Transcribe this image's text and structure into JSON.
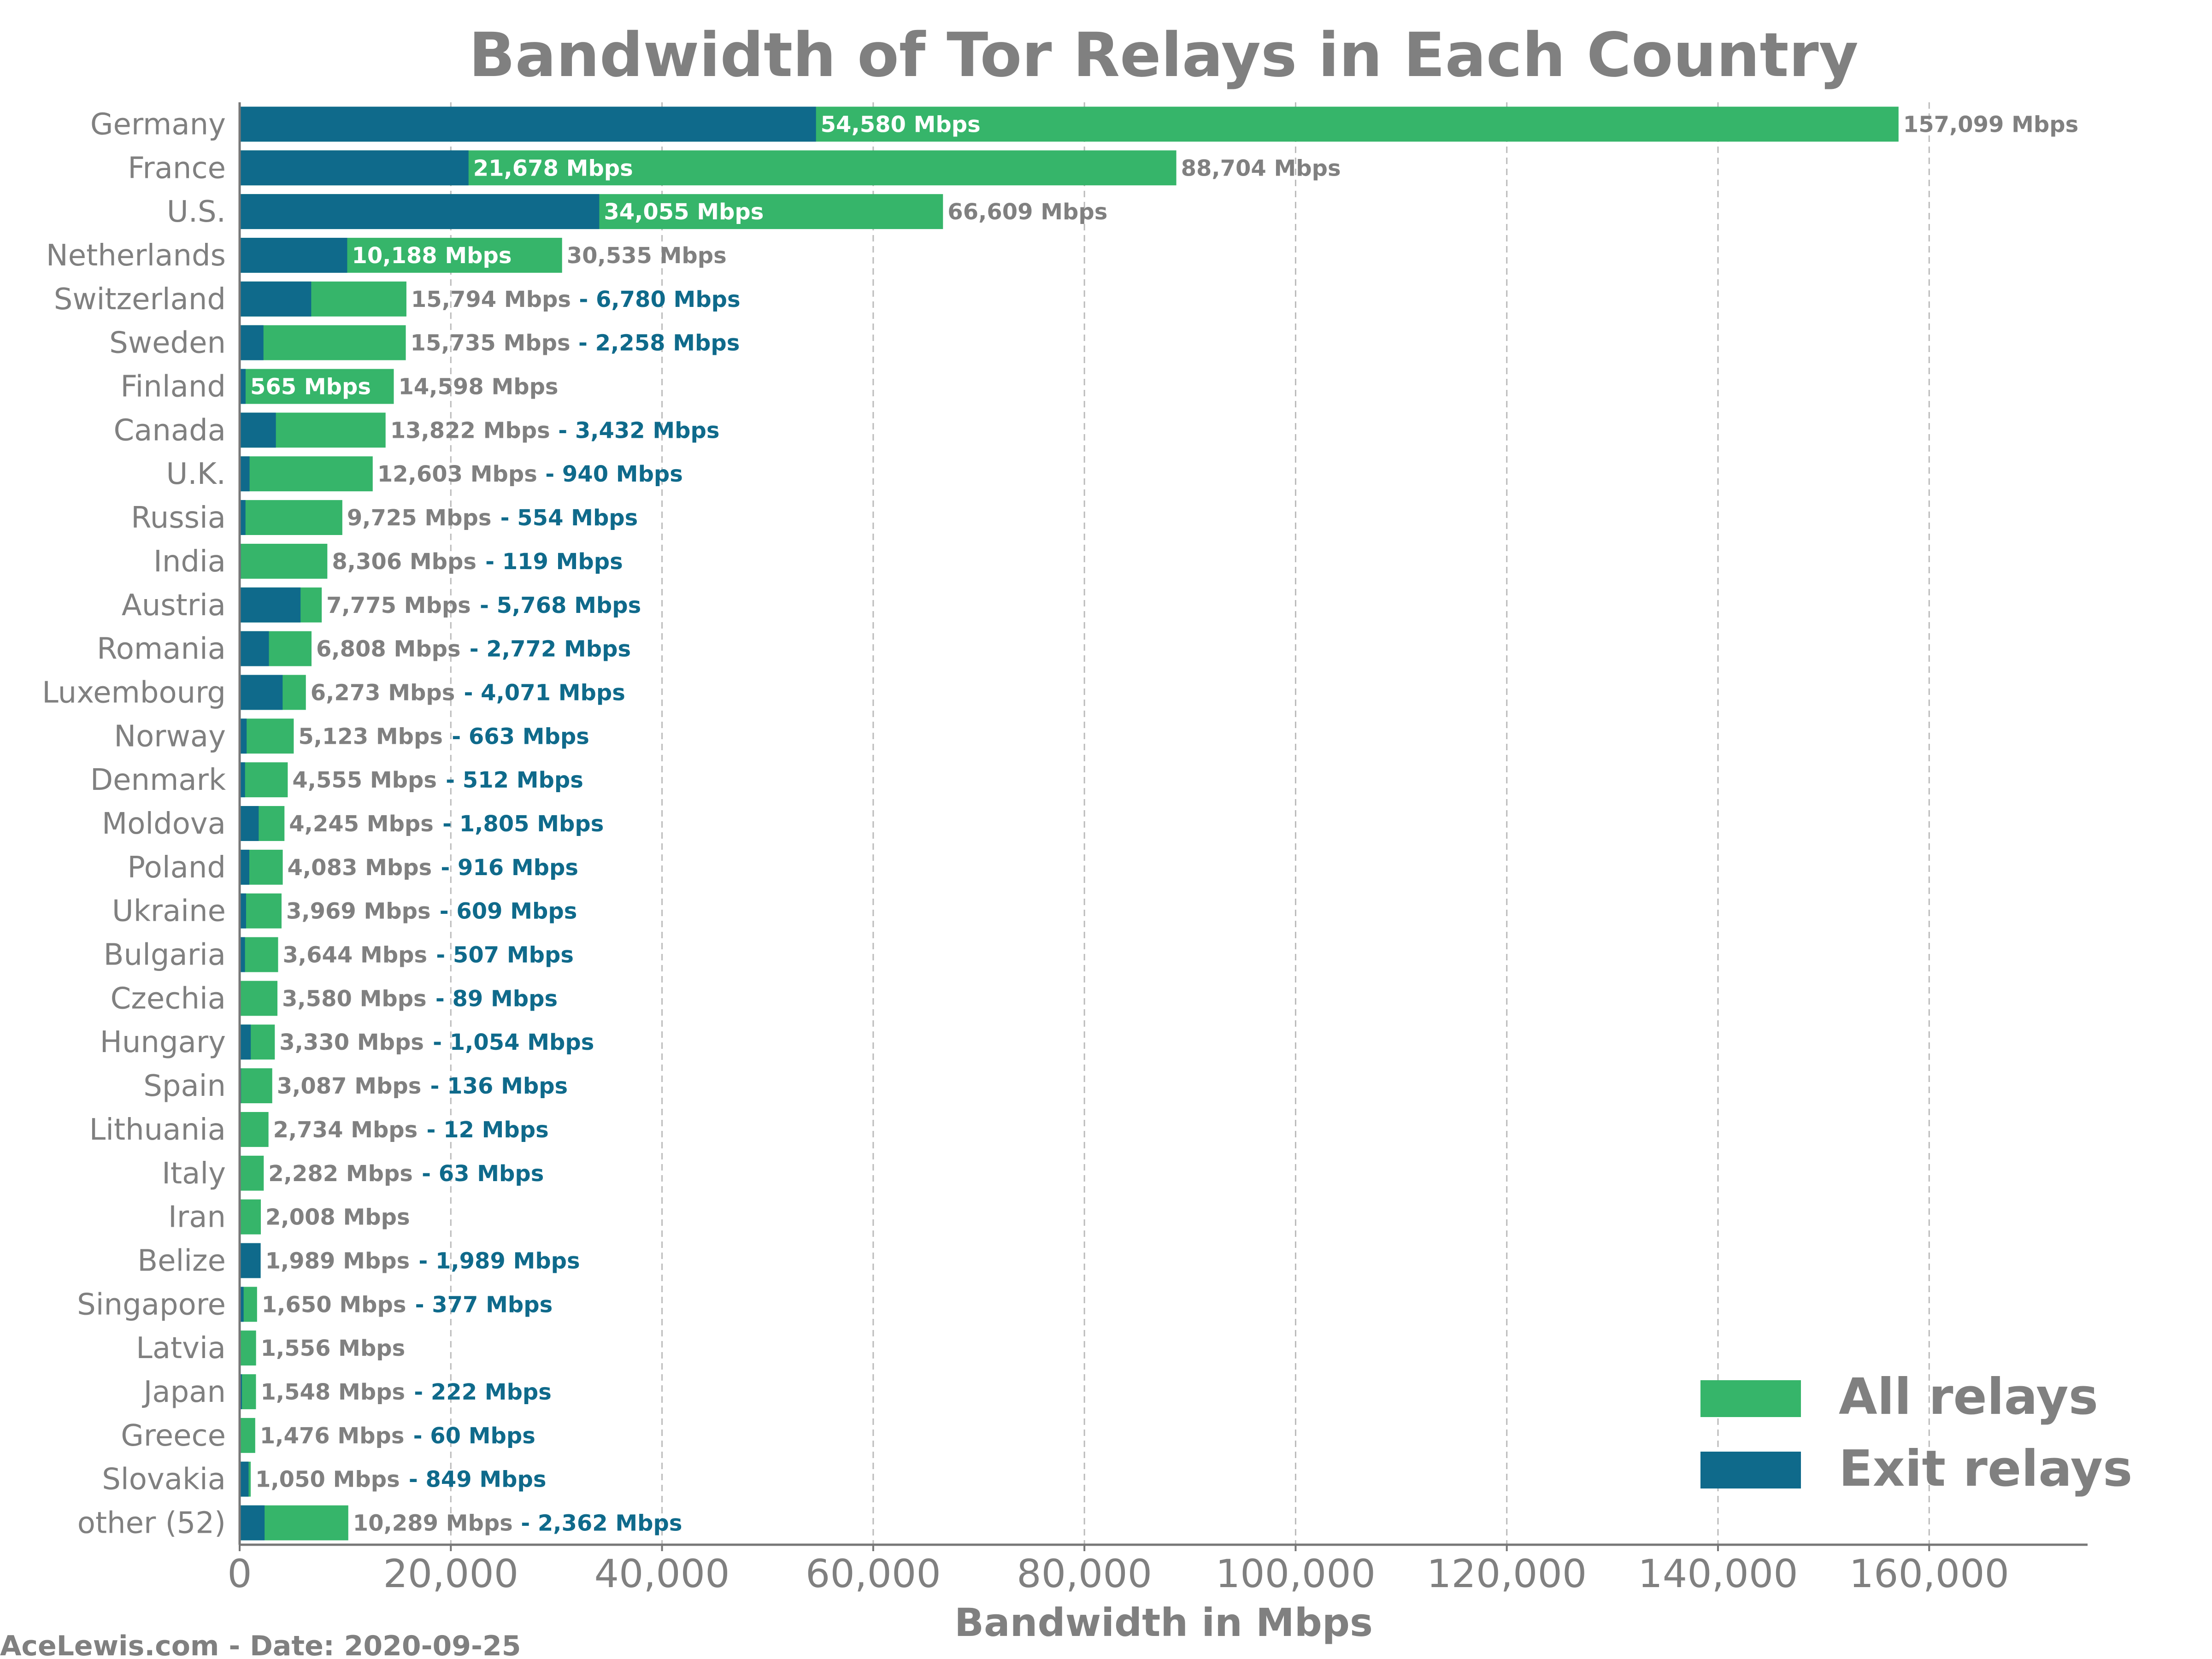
{
  "chart_data": {
    "type": "bar",
    "orientation": "horizontal",
    "stacking": "overlay",
    "title": "Bandwidth of Tor Relays in Each Country",
    "xlabel": "Bandwidth in Mbps",
    "ylabel": "",
    "xlim": [
      0,
      175000
    ],
    "xticks": [
      0,
      20000,
      40000,
      60000,
      80000,
      100000,
      120000,
      140000,
      160000
    ],
    "xtick_labels": [
      "0",
      "20,000",
      "40,000",
      "60,000",
      "80,000",
      "100,000",
      "120,000",
      "140,000",
      "160,000"
    ],
    "grid": "vertical dashed",
    "legend_position": "bottom-right",
    "unit": "Mbps",
    "categories": [
      "Germany",
      "France",
      "U.S.",
      "Netherlands",
      "Switzerland",
      "Sweden",
      "Finland",
      "Canada",
      "U.K.",
      "Russia",
      "India",
      "Austria",
      "Romania",
      "Luxembourg",
      "Norway",
      "Denmark",
      "Moldova",
      "Poland",
      "Ukraine",
      "Bulgaria",
      "Czechia",
      "Hungary",
      "Spain",
      "Lithuania",
      "Italy",
      "Iran",
      "Belize",
      "Singapore",
      "Latvia",
      "Japan",
      "Greece",
      "Slovakia",
      "other (52)"
    ],
    "series": [
      {
        "name": "All relays",
        "color": "#36b56a",
        "values": [
          157099,
          88704,
          66609,
          30535,
          15794,
          15735,
          14598,
          13822,
          12603,
          9725,
          8306,
          7775,
          6808,
          6273,
          5123,
          4555,
          4245,
          4083,
          3969,
          3644,
          3580,
          3330,
          3087,
          2734,
          2282,
          2008,
          1989,
          1650,
          1556,
          1548,
          1476,
          1050,
          10289
        ],
        "labels": [
          "157,099 Mbps",
          "88,704 Mbps",
          "66,609 Mbps",
          "30,535 Mbps",
          "15,794 Mbps",
          "15,735 Mbps",
          "14,598 Mbps",
          "13,822 Mbps",
          "12,603 Mbps",
          "9,725 Mbps",
          "8,306 Mbps",
          "7,775 Mbps",
          "6,808 Mbps",
          "6,273 Mbps",
          "5,123 Mbps",
          "4,555 Mbps",
          "4,245 Mbps",
          "4,083 Mbps",
          "3,969 Mbps",
          "3,644 Mbps",
          "3,580 Mbps",
          "3,330 Mbps",
          "3,087 Mbps",
          "2,734 Mbps",
          "2,282 Mbps",
          "2,008 Mbps",
          "1,989 Mbps",
          "1,650 Mbps",
          "1,556 Mbps",
          "1,548 Mbps",
          "1,476 Mbps",
          "1,050 Mbps",
          "10,289 Mbps"
        ]
      },
      {
        "name": "Exit relays",
        "color": "#0f6a8b",
        "values": [
          54580,
          21678,
          34055,
          10188,
          6780,
          2258,
          565,
          3432,
          940,
          554,
          119,
          5768,
          2772,
          4071,
          663,
          512,
          1805,
          916,
          609,
          507,
          89,
          1054,
          136,
          12,
          63,
          0,
          1989,
          377,
          0,
          222,
          60,
          849,
          2362
        ],
        "labels": [
          "54,580 Mbps",
          "21,678 Mbps",
          "34,055 Mbps",
          "10,188 Mbps",
          "- 6,780 Mbps",
          "- 2,258 Mbps",
          "565 Mbps",
          "- 3,432 Mbps",
          "- 940 Mbps",
          "- 554 Mbps",
          "- 119 Mbps",
          "- 5,768 Mbps",
          "- 2,772 Mbps",
          "- 4,071 Mbps",
          "- 663 Mbps",
          "- 512 Mbps",
          "- 1,805 Mbps",
          "- 916 Mbps",
          "- 609 Mbps",
          "- 507 Mbps",
          "- 89 Mbps",
          "- 1,054 Mbps",
          "- 136 Mbps",
          "- 12 Mbps",
          "- 63 Mbps",
          "",
          "- 1,989 Mbps",
          "- 377 Mbps",
          "",
          "- 222 Mbps",
          "- 60 Mbps",
          "- 849 Mbps",
          "- 2,362 Mbps"
        ],
        "label_placement": [
          "inside",
          "inside",
          "inside",
          "inside",
          "after",
          "after",
          "inside",
          "after",
          "after",
          "after",
          "after",
          "after",
          "after",
          "after",
          "after",
          "after",
          "after",
          "after",
          "after",
          "after",
          "after",
          "after",
          "after",
          "after",
          "after",
          "none",
          "after",
          "after",
          "none",
          "after",
          "after",
          "after",
          "after"
        ]
      }
    ]
  },
  "footer": "AceLewis.com - Date: 2020-09-25",
  "colors": {
    "text_gray": "#808080",
    "exit_label": "#0f6a8b",
    "inside_label": "#ffffff",
    "grid": "#bbbbbb",
    "axis": "#777777"
  }
}
